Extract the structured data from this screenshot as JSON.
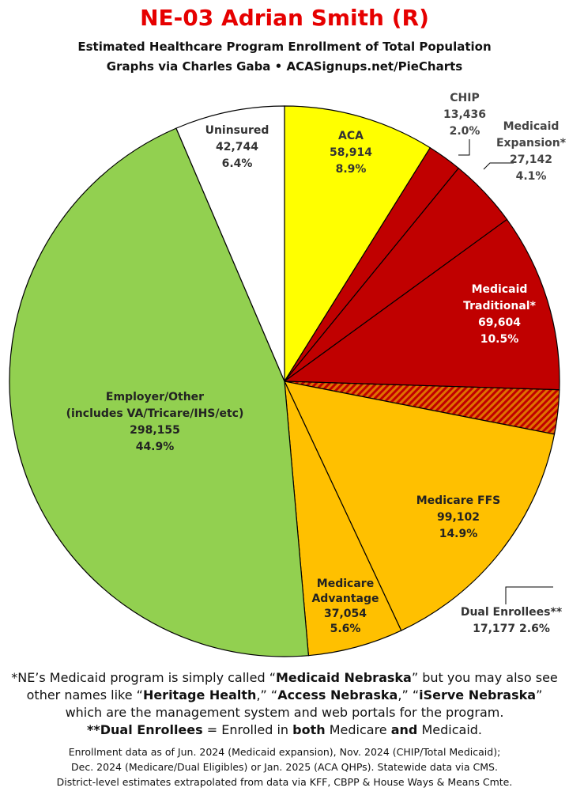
{
  "header": {
    "title": "NE-03 Adrian Smith (R)",
    "subtitle1": "Estimated Healthcare Program Enrollment of Total Population",
    "subtitle2": "Graphs via Charles Gaba  •  ACASignups.net/PieCharts"
  },
  "chart_data": {
    "type": "pie",
    "start": "12 o'clock",
    "direction": "clockwise",
    "slices": [
      {
        "label": "ACA",
        "value": 58914,
        "value_text": "58,914",
        "percent": 8.9,
        "percent_text": "8.9%",
        "color": "#ffff00"
      },
      {
        "label": "CHIP",
        "value": 13436,
        "value_text": "13,436",
        "percent": 2.0,
        "percent_text": "2.0%",
        "color": "#c00000"
      },
      {
        "label": "Medicaid Expansion*",
        "value": 27142,
        "value_text": "27,142",
        "percent": 4.1,
        "percent_text": "4.1%",
        "color": "#c00000"
      },
      {
        "label": "Medicaid Traditional*",
        "value": 69604,
        "value_text": "69,604",
        "percent": 10.5,
        "percent_text": "10.5%",
        "color": "#c00000"
      },
      {
        "label": "Dual Enrollees**",
        "value": 17177,
        "value_text": "17,177",
        "percent": 2.6,
        "percent_text": "2.6%",
        "color": "#e07000",
        "pattern": "hatched"
      },
      {
        "label": "Medicare FFS",
        "value": 99102,
        "value_text": "99,102",
        "percent": 14.9,
        "percent_text": "14.9%",
        "color": "#ffc000"
      },
      {
        "label": "Medicare Advantage",
        "value": 37054,
        "value_text": "37,054",
        "percent": 5.6,
        "percent_text": "5.6%",
        "color": "#ffc000"
      },
      {
        "label": "Employer/Other (includes VA/Tricare/IHS/etc)",
        "value": 298155,
        "value_text": "298,155",
        "percent": 44.9,
        "percent_text": "44.9%",
        "color": "#92d050"
      },
      {
        "label": "Uninsured",
        "value": 42744,
        "value_text": "42,744",
        "percent": 6.4,
        "percent_text": "6.4%",
        "color": "#ffffff"
      }
    ]
  },
  "footnotes": {
    "line1_a": "*NE’s Medicaid program is simply called “",
    "line1_b": "Medicaid Nebraska",
    "line1_c": "” but you may also see",
    "line2_a": "other names like “",
    "line2_b": "Heritage Health",
    "line2_c": ",” “",
    "line2_d": "Access Nebraska",
    "line2_e": ",” “",
    "line2_f": "iServe Nebraska",
    "line2_g": "”",
    "line3": "which are the management system and web portals for the program.",
    "line4_a": "**Dual Enrollees",
    "line4_b": " = Enrolled in ",
    "line4_c": "both",
    "line4_d": " Medicare ",
    "line4_e": "and",
    "line4_f": " Medicaid.",
    "source1": "Enrollment data as of Jun. 2024 (Medicaid expansion), Nov. 2024 (CHIP/Total Medicaid);",
    "source2": "Dec. 2024 (Medicare/Dual Eligibles) or Jan. 2025 (ACA QHPs). Statewide data via CMS.",
    "source3": "District-level estimates extrapolated from data via KFF, CBPP & House Ways & Means Cmte."
  }
}
